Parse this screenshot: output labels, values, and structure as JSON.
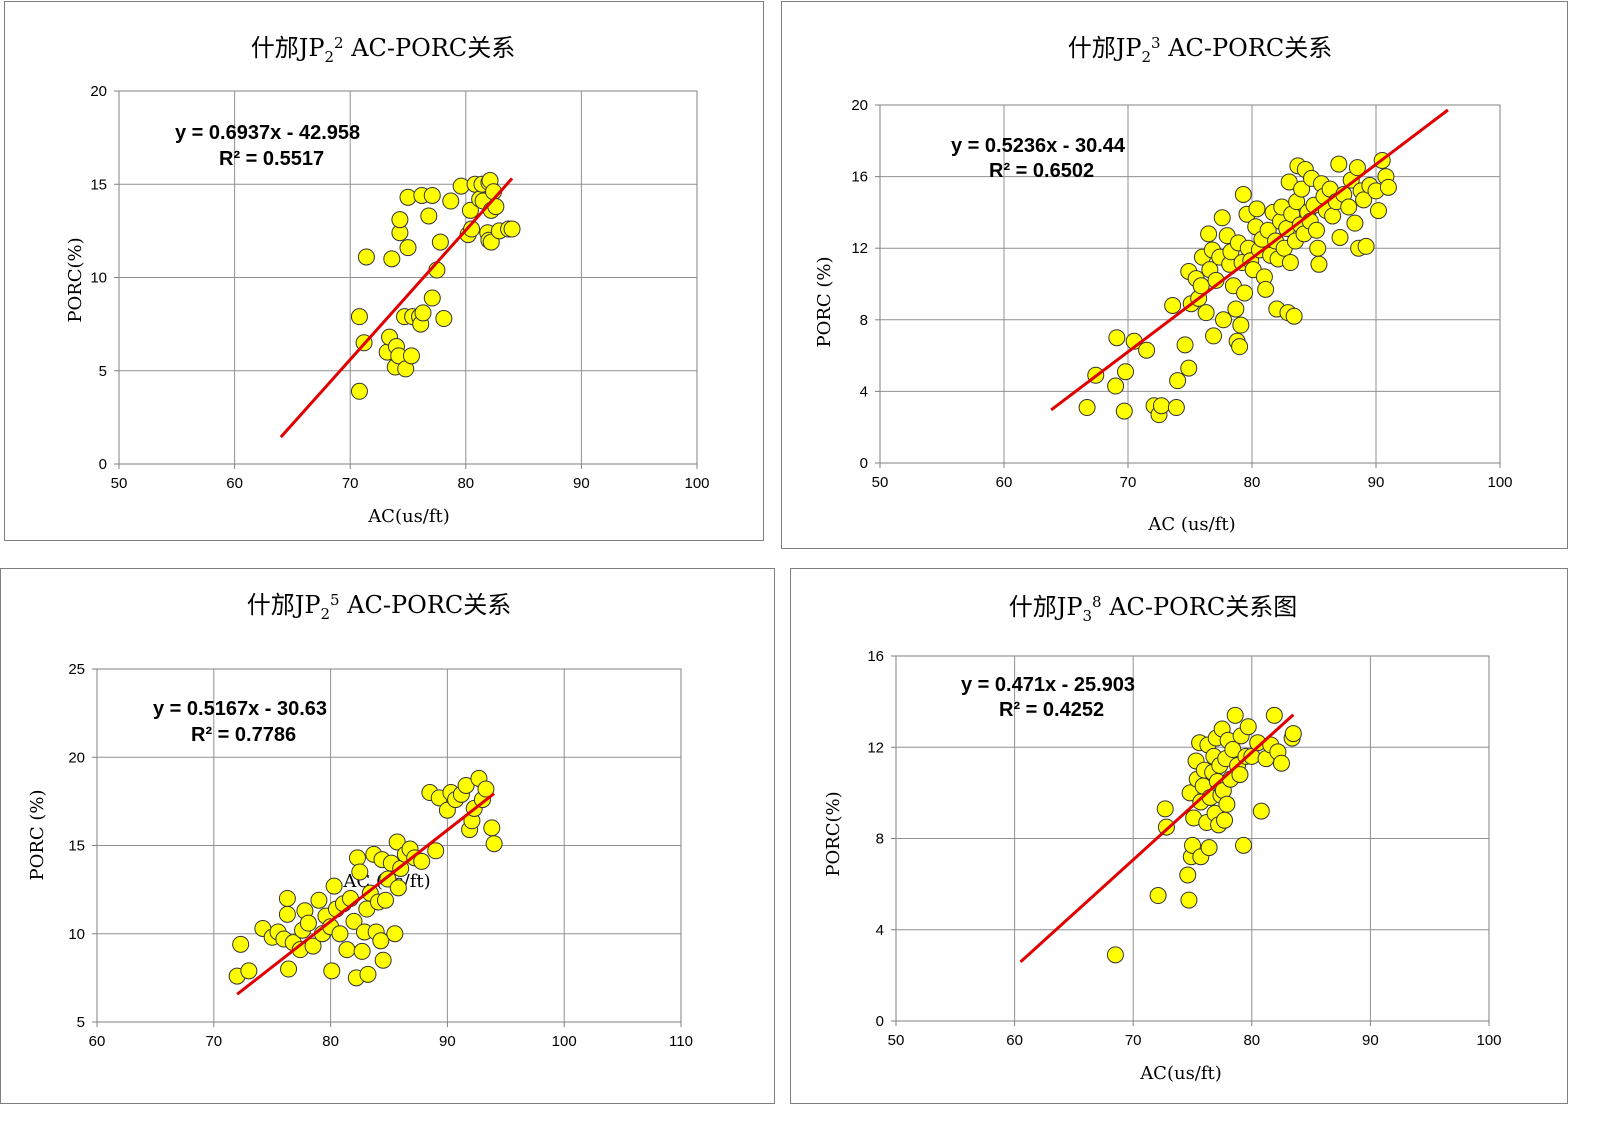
{
  "chart_data": [
    {
      "type": "scatter",
      "title": "什邡JP",
      "title_sub": "2",
      "title_sup": "2",
      "title_tail": " AC-PORC关系",
      "xlabel": "AC(us/ft)",
      "ylabel": "PORC(%)",
      "xlim": [
        50,
        100
      ],
      "ylim": [
        0,
        20
      ],
      "xticks": [
        50,
        60,
        70,
        80,
        90,
        100
      ],
      "yticks": [
        0,
        5,
        10,
        15,
        20
      ],
      "grid": true,
      "trendline": {
        "slope": 0.6937,
        "intercept": -42.958,
        "x_range": [
          64,
          84
        ]
      },
      "equation": "y = 0.6937x - 42.958",
      "r2": "R² = 0.5517",
      "marker_color": "#FFFF00",
      "line_color": "#E00000",
      "points": [
        [
          70.8,
          7.9
        ],
        [
          70.8,
          3.9
        ],
        [
          71.2,
          6.5
        ],
        [
          71.4,
          11.1
        ],
        [
          73.2,
          6.0
        ],
        [
          73.4,
          6.8
        ],
        [
          73.6,
          11.0
        ],
        [
          73.9,
          5.2
        ],
        [
          74.0,
          6.3
        ],
        [
          74.2,
          5.8
        ],
        [
          74.3,
          12.4
        ],
        [
          74.3,
          13.1
        ],
        [
          74.7,
          7.9
        ],
        [
          74.8,
          5.1
        ],
        [
          75.0,
          14.3
        ],
        [
          75.0,
          11.6
        ],
        [
          75.3,
          5.8
        ],
        [
          75.4,
          7.9
        ],
        [
          76.0,
          7.9
        ],
        [
          76.1,
          7.5
        ],
        [
          76.2,
          14.4
        ],
        [
          76.3,
          8.1
        ],
        [
          76.8,
          13.3
        ],
        [
          77.1,
          14.4
        ],
        [
          77.1,
          8.9
        ],
        [
          77.5,
          10.4
        ],
        [
          77.8,
          11.9
        ],
        [
          78.1,
          7.8
        ],
        [
          78.7,
          14.1
        ],
        [
          79.6,
          14.9
        ],
        [
          80.2,
          12.3
        ],
        [
          80.4,
          13.6
        ],
        [
          80.5,
          12.6
        ],
        [
          80.8,
          15.0
        ],
        [
          81.2,
          14.2
        ],
        [
          81.4,
          15.0
        ],
        [
          81.5,
          14.1
        ],
        [
          81.9,
          12.4
        ],
        [
          82.0,
          15.1
        ],
        [
          82.0,
          12.0
        ],
        [
          82.1,
          15.2
        ],
        [
          82.2,
          11.9
        ],
        [
          82.2,
          13.6
        ],
        [
          82.4,
          14.6
        ],
        [
          82.6,
          13.8
        ],
        [
          82.9,
          12.5
        ],
        [
          83.7,
          12.6
        ],
        [
          84.0,
          12.6
        ]
      ]
    },
    {
      "type": "scatter",
      "title": "什邡JP",
      "title_sub": "2",
      "title_sup": "3",
      "title_tail": " AC-PORC关系",
      "xlabel": "AC (us/ft)",
      "ylabel": "PORC (%)",
      "xlim": [
        50,
        100
      ],
      "ylim": [
        0,
        20
      ],
      "xticks": [
        50,
        60,
        70,
        80,
        90,
        100
      ],
      "yticks": [
        0,
        4,
        8,
        12,
        16,
        20
      ],
      "grid": true,
      "trendline": {
        "slope": 0.5236,
        "intercept": -30.44,
        "x_range": [
          63.8,
          95.8
        ]
      },
      "equation": "y = 0.5236x - 30.44",
      "r2": "R² = 0.6502",
      "marker_color": "#FFFF00",
      "line_color": "#E00000",
      "points": [
        [
          66.7,
          3.1
        ],
        [
          67.4,
          4.9
        ],
        [
          69.0,
          4.3
        ],
        [
          69.1,
          7.0
        ],
        [
          69.7,
          2.9
        ],
        [
          69.8,
          5.1
        ],
        [
          70.5,
          6.8
        ],
        [
          71.5,
          6.3
        ],
        [
          72.1,
          3.2
        ],
        [
          72.5,
          2.7
        ],
        [
          72.7,
          3.2
        ],
        [
          73.6,
          8.8
        ],
        [
          73.9,
          3.1
        ],
        [
          74.0,
          4.6
        ],
        [
          74.6,
          6.6
        ],
        [
          74.9,
          5.3
        ],
        [
          74.9,
          10.7
        ],
        [
          75.1,
          8.9
        ],
        [
          75.5,
          10.3
        ],
        [
          75.7,
          9.2
        ],
        [
          75.9,
          9.9
        ],
        [
          76.0,
          11.5
        ],
        [
          76.3,
          8.4
        ],
        [
          76.5,
          12.8
        ],
        [
          76.6,
          10.8
        ],
        [
          76.8,
          11.9
        ],
        [
          76.9,
          7.1
        ],
        [
          77.1,
          10.2
        ],
        [
          77.4,
          11.5
        ],
        [
          77.6,
          13.7
        ],
        [
          77.7,
          8.0
        ],
        [
          78.0,
          12.7
        ],
        [
          78.2,
          11.1
        ],
        [
          78.3,
          11.8
        ],
        [
          78.5,
          9.9
        ],
        [
          78.7,
          8.6
        ],
        [
          78.8,
          6.8
        ],
        [
          78.9,
          12.3
        ],
        [
          79.0,
          6.5
        ],
        [
          79.1,
          7.7
        ],
        [
          79.2,
          11.2
        ],
        [
          79.3,
          15.0
        ],
        [
          79.4,
          9.5
        ],
        [
          79.6,
          13.9
        ],
        [
          79.7,
          12.0
        ],
        [
          79.9,
          11.3
        ],
        [
          80.1,
          10.8
        ],
        [
          80.3,
          13.2
        ],
        [
          80.4,
          14.2
        ],
        [
          80.6,
          11.9
        ],
        [
          80.8,
          12.5
        ],
        [
          81.0,
          10.4
        ],
        [
          81.1,
          9.7
        ],
        [
          81.3,
          13.0
        ],
        [
          81.5,
          11.6
        ],
        [
          81.7,
          14.0
        ],
        [
          81.9,
          12.4
        ],
        [
          82.0,
          8.6
        ],
        [
          82.1,
          11.4
        ],
        [
          82.3,
          13.5
        ],
        [
          82.4,
          14.3
        ],
        [
          82.6,
          12.0
        ],
        [
          82.8,
          13.1
        ],
        [
          82.9,
          8.4
        ],
        [
          83.0,
          15.7
        ],
        [
          83.1,
          11.2
        ],
        [
          83.2,
          13.9
        ],
        [
          83.4,
          8.2
        ],
        [
          83.5,
          12.4
        ],
        [
          83.6,
          14.6
        ],
        [
          83.7,
          16.6
        ],
        [
          83.9,
          13.3
        ],
        [
          84.0,
          15.3
        ],
        [
          84.2,
          12.8
        ],
        [
          84.3,
          16.4
        ],
        [
          84.5,
          14.0
        ],
        [
          84.7,
          13.5
        ],
        [
          84.8,
          15.9
        ],
        [
          85.0,
          14.4
        ],
        [
          85.2,
          13.0
        ],
        [
          85.3,
          12.0
        ],
        [
          85.4,
          11.1
        ],
        [
          85.6,
          15.6
        ],
        [
          85.8,
          14.9
        ],
        [
          86.0,
          14.1
        ],
        [
          86.3,
          15.3
        ],
        [
          86.5,
          13.8
        ],
        [
          86.8,
          14.6
        ],
        [
          87.0,
          16.7
        ],
        [
          87.1,
          12.6
        ],
        [
          87.4,
          15.0
        ],
        [
          87.8,
          14.3
        ],
        [
          88.0,
          15.8
        ],
        [
          88.3,
          13.4
        ],
        [
          88.5,
          16.5
        ],
        [
          88.6,
          12.0
        ],
        [
          88.8,
          15.2
        ],
        [
          89.0,
          14.7
        ],
        [
          89.2,
          12.1
        ],
        [
          89.5,
          15.5
        ],
        [
          90.0,
          15.2
        ],
        [
          90.2,
          14.1
        ],
        [
          90.5,
          16.9
        ],
        [
          90.8,
          16.0
        ],
        [
          91.0,
          15.4
        ]
      ]
    },
    {
      "type": "scatter",
      "title": "什邡JP",
      "title_sub": "2",
      "title_sup": "5",
      "title_tail": " AC-PORC关系",
      "xlabel": "AC (us/ft)",
      "ylabel": "PORC (%)",
      "xlim": [
        60,
        110
      ],
      "ylim": [
        5,
        25
      ],
      "xticks": [
        60,
        70,
        80,
        90,
        100,
        110
      ],
      "yticks": [
        5,
        10,
        15,
        20,
        25
      ],
      "grid": true,
      "trendline": {
        "slope": 0.5167,
        "intercept": -30.63,
        "x_range": [
          72,
          94
        ]
      },
      "equation": "y = 0.5167x - 30.63",
      "r2": "R² = 0.7786",
      "marker_color": "#FFFF00",
      "line_color": "#E00000",
      "points": [
        [
          72.0,
          7.6
        ],
        [
          72.3,
          9.4
        ],
        [
          73.0,
          7.9
        ],
        [
          74.2,
          10.3
        ],
        [
          75.0,
          9.8
        ],
        [
          75.5,
          10.1
        ],
        [
          76.0,
          9.7
        ],
        [
          76.3,
          11.1
        ],
        [
          76.3,
          12.0
        ],
        [
          76.4,
          8.0
        ],
        [
          76.8,
          9.5
        ],
        [
          77.4,
          9.1
        ],
        [
          77.6,
          10.2
        ],
        [
          77.8,
          11.3
        ],
        [
          78.1,
          10.6
        ],
        [
          78.5,
          9.3
        ],
        [
          79.0,
          11.9
        ],
        [
          79.3,
          10.0
        ],
        [
          79.6,
          11.0
        ],
        [
          80.0,
          10.4
        ],
        [
          80.1,
          7.9
        ],
        [
          80.3,
          12.7
        ],
        [
          80.5,
          11.4
        ],
        [
          80.8,
          10.0
        ],
        [
          81.1,
          11.7
        ],
        [
          81.4,
          9.1
        ],
        [
          81.7,
          12.0
        ],
        [
          82.0,
          10.7
        ],
        [
          82.2,
          7.5
        ],
        [
          82.3,
          14.3
        ],
        [
          82.5,
          13.5
        ],
        [
          82.7,
          9.0
        ],
        [
          82.9,
          10.1
        ],
        [
          83.1,
          11.4
        ],
        [
          83.2,
          7.7
        ],
        [
          83.4,
          12.3
        ],
        [
          83.7,
          14.5
        ],
        [
          83.9,
          10.1
        ],
        [
          84.1,
          11.8
        ],
        [
          84.3,
          9.6
        ],
        [
          84.4,
          14.2
        ],
        [
          84.5,
          8.5
        ],
        [
          84.7,
          11.9
        ],
        [
          84.9,
          13.1
        ],
        [
          85.2,
          14.0
        ],
        [
          85.5,
          10.0
        ],
        [
          85.7,
          15.2
        ],
        [
          85.8,
          12.6
        ],
        [
          86.0,
          13.7
        ],
        [
          86.4,
          14.5
        ],
        [
          86.8,
          14.8
        ],
        [
          87.2,
          14.3
        ],
        [
          87.8,
          14.1
        ],
        [
          88.5,
          18.0
        ],
        [
          89.0,
          14.7
        ],
        [
          89.3,
          17.7
        ],
        [
          90.0,
          17.0
        ],
        [
          90.3,
          18.0
        ],
        [
          90.7,
          17.6
        ],
        [
          91.2,
          17.9
        ],
        [
          91.6,
          18.4
        ],
        [
          91.9,
          15.9
        ],
        [
          92.1,
          16.4
        ],
        [
          92.3,
          17.1
        ],
        [
          92.7,
          18.8
        ],
        [
          93.0,
          17.6
        ],
        [
          93.3,
          18.2
        ],
        [
          93.8,
          16.0
        ],
        [
          94.0,
          15.1
        ]
      ]
    },
    {
      "type": "scatter",
      "title": "什邡JP",
      "title_sub": "3",
      "title_sup": "8",
      "title_tail": " AC-PORC关系图",
      "xlabel": "AC(us/ft)",
      "ylabel": "PORC(%)",
      "xlim": [
        50,
        100
      ],
      "ylim": [
        0,
        16
      ],
      "xticks": [
        50,
        60,
        70,
        80,
        90,
        100
      ],
      "yticks": [
        0,
        4,
        8,
        12,
        16
      ],
      "grid": true,
      "trendline": {
        "slope": 0.471,
        "intercept": -25.903,
        "x_range": [
          60.5,
          83.5
        ]
      },
      "equation": "y = 0.471x - 25.903",
      "r2": "R² = 0.4252",
      "marker_color": "#FFFF00",
      "line_color": "#E00000",
      "points": [
        [
          68.5,
          2.9
        ],
        [
          72.1,
          5.5
        ],
        [
          72.7,
          9.3
        ],
        [
          72.8,
          8.5
        ],
        [
          74.6,
          6.4
        ],
        [
          74.7,
          5.3
        ],
        [
          74.8,
          10.0
        ],
        [
          74.9,
          7.2
        ],
        [
          75.0,
          7.7
        ],
        [
          75.1,
          8.9
        ],
        [
          75.3,
          11.4
        ],
        [
          75.4,
          10.6
        ],
        [
          75.6,
          12.2
        ],
        [
          75.7,
          9.6
        ],
        [
          75.7,
          7.2
        ],
        [
          75.9,
          10.3
        ],
        [
          76.0,
          11.0
        ],
        [
          76.2,
          8.7
        ],
        [
          76.3,
          12.1
        ],
        [
          76.4,
          7.6
        ],
        [
          76.5,
          9.8
        ],
        [
          76.7,
          10.9
        ],
        [
          76.8,
          11.6
        ],
        [
          76.9,
          9.1
        ],
        [
          77.0,
          12.4
        ],
        [
          77.1,
          10.5
        ],
        [
          77.2,
          8.6
        ],
        [
          77.3,
          11.2
        ],
        [
          77.4,
          9.9
        ],
        [
          77.5,
          12.8
        ],
        [
          77.6,
          10.1
        ],
        [
          77.7,
          8.8
        ],
        [
          77.8,
          11.5
        ],
        [
          77.9,
          9.5
        ],
        [
          78.0,
          12.3
        ],
        [
          78.2,
          10.6
        ],
        [
          78.4,
          11.9
        ],
        [
          78.6,
          13.4
        ],
        [
          78.8,
          11.2
        ],
        [
          79.0,
          10.8
        ],
        [
          79.1,
          12.5
        ],
        [
          79.3,
          7.7
        ],
        [
          79.5,
          11.6
        ],
        [
          79.7,
          12.9
        ],
        [
          80.0,
          11.6
        ],
        [
          80.5,
          12.2
        ],
        [
          80.8,
          9.2
        ],
        [
          81.2,
          11.5
        ],
        [
          81.6,
          12.1
        ],
        [
          81.9,
          13.4
        ],
        [
          82.2,
          11.8
        ],
        [
          82.5,
          11.3
        ],
        [
          83.4,
          12.4
        ],
        [
          83.5,
          12.6
        ]
      ]
    }
  ]
}
